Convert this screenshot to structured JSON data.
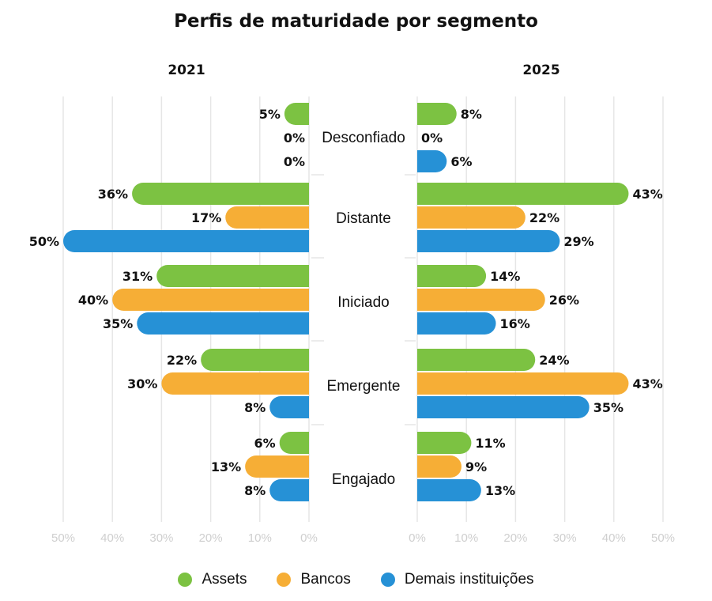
{
  "chart_data": {
    "type": "bar",
    "orientation": "horizontal-butterfly",
    "title": "Perfis de maturidade por segmento",
    "categories": [
      "Desconfiado",
      "Distante",
      "Iniciado",
      "Emergente",
      "Engajado"
    ],
    "panels": [
      {
        "name": "2021",
        "direction": "left",
        "series": [
          {
            "name": "Assets",
            "color": "#7cc242",
            "values": [
              5,
              36,
              31,
              22,
              6
            ],
            "labels": [
              "5%",
              "36%",
              "31%",
              "22%",
              "6%"
            ]
          },
          {
            "name": "Bancos",
            "color": "#f6ae36",
            "values": [
              0,
              17,
              40,
              30,
              13
            ],
            "labels": [
              "0%",
              "17%",
              "40%",
              "30%",
              "13%"
            ]
          },
          {
            "name": "Demais instituições",
            "color": "#2691d6",
            "values": [
              0,
              50,
              35,
              8,
              8
            ],
            "labels": [
              "0%",
              "50%",
              "35%",
              "8%",
              "8%"
            ]
          }
        ]
      },
      {
        "name": "2025",
        "direction": "right",
        "series": [
          {
            "name": "Assets",
            "color": "#7cc242",
            "values": [
              8,
              43,
              14,
              24,
              11
            ],
            "labels": [
              "8%",
              "43%",
              "14%",
              "24%",
              "11%"
            ]
          },
          {
            "name": "Bancos",
            "color": "#f6ae36",
            "values": [
              0,
              22,
              26,
              43,
              9
            ],
            "labels": [
              "0%",
              "22%",
              "26%",
              "43%",
              "9%"
            ]
          },
          {
            "name": "Demais instituições",
            "color": "#2691d6",
            "values": [
              6,
              29,
              16,
              35,
              13
            ],
            "labels": [
              "6%",
              "29%",
              "16%",
              "35%",
              "13%"
            ]
          }
        ]
      }
    ],
    "xlim": [
      0,
      50
    ],
    "ticks": [
      0,
      10,
      20,
      30,
      40,
      50
    ],
    "tick_labels": [
      "0%",
      "10%",
      "20%",
      "30%",
      "40%",
      "50%"
    ],
    "grid": true,
    "legend": {
      "position": "bottom",
      "entries": [
        {
          "label": "Assets",
          "color": "#7cc242"
        },
        {
          "label": "Bancos",
          "color": "#f6ae36"
        },
        {
          "label": "Demais instituições",
          "color": "#2691d6"
        }
      ]
    }
  }
}
